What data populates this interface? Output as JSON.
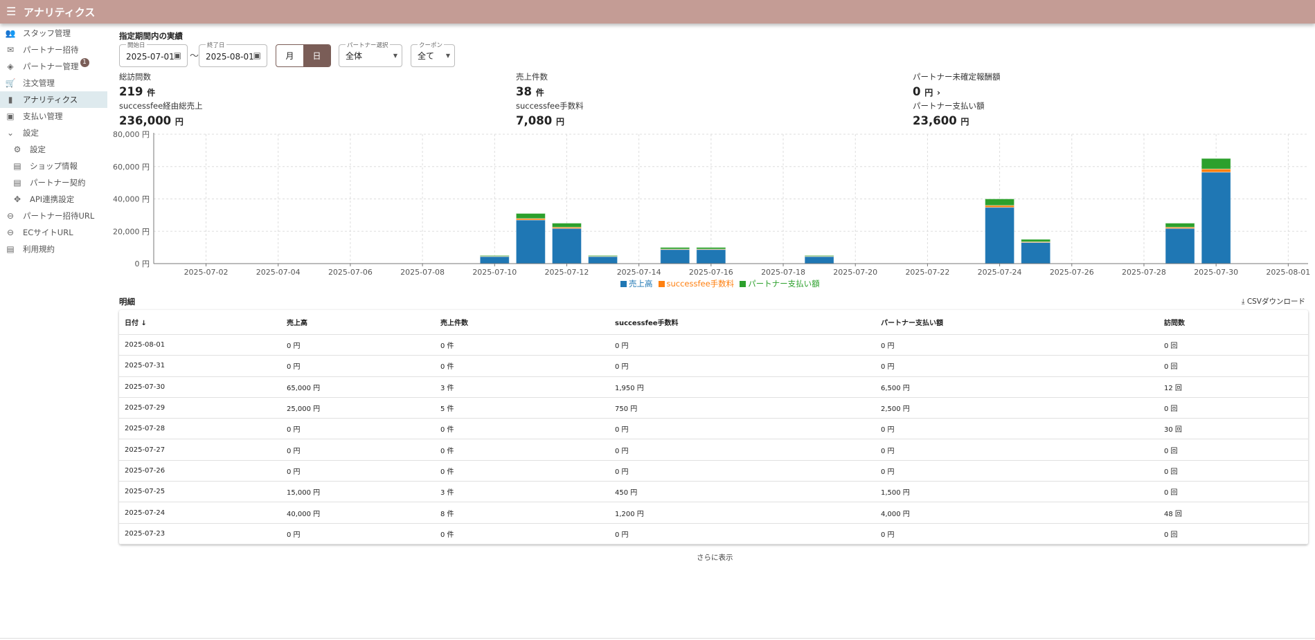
{
  "header": {
    "title": "アナリティクス"
  },
  "sidebar": {
    "items": [
      {
        "label": "スタッフ管理",
        "icon": "people-icon"
      },
      {
        "label": "パートナー招待",
        "icon": "mail-icon"
      },
      {
        "label": "パートナー管理",
        "icon": "handshake-icon",
        "badge": "1"
      },
      {
        "label": "注文管理",
        "icon": "cart-icon"
      },
      {
        "label": "アナリティクス",
        "icon": "bar-chart-icon",
        "active": true
      },
      {
        "label": "支払い管理",
        "icon": "payments-icon"
      },
      {
        "label": "設定",
        "icon": "chevron-down-icon"
      },
      {
        "label": "設定",
        "icon": "gear-icon",
        "sub": true
      },
      {
        "label": "ショップ情報",
        "icon": "store-icon",
        "sub": true
      },
      {
        "label": "パートナー契約",
        "icon": "document-icon",
        "sub": true
      },
      {
        "label": "API連携設定",
        "icon": "api-icon",
        "sub": true
      },
      {
        "label": "パートナー招待URL",
        "icon": "link-icon"
      },
      {
        "label": "ECサイトURL",
        "icon": "link-icon"
      },
      {
        "label": "利用規約",
        "icon": "document-icon"
      }
    ]
  },
  "filters": {
    "section_title": "指定期間内の実績",
    "start_label": "開始日",
    "start_value": "2025-07-01",
    "tilde": "〜",
    "end_label": "終了日",
    "end_value": "2025-08-01",
    "month": "月",
    "day": "日",
    "partner_label": "パートナー選択",
    "partner_value": "全体",
    "coupon_label": "クーポン",
    "coupon_value": "全て"
  },
  "stats": [
    {
      "label": "総訪問数",
      "value": "219",
      "unit": "件",
      "label2": "successfee経由総売上",
      "value2": "236,000",
      "unit2": "円"
    },
    {
      "label": "売上件数",
      "value": "38",
      "unit": "件",
      "label2": "successfee手数料",
      "value2": "7,080",
      "unit2": "円"
    },
    {
      "label": "パートナー未確定報酬額",
      "value": "0",
      "unit": "円",
      "label2": "パートナー支払い額",
      "value2": "23,600",
      "unit2": "円"
    }
  ],
  "chart_data": {
    "type": "bar",
    "stacked": true,
    "x": [
      "2025-07-10",
      "2025-07-11",
      "2025-07-12",
      "2025-07-13",
      "2025-07-15",
      "2025-07-16",
      "2025-07-19",
      "2025-07-24",
      "2025-07-25",
      "2025-07-29",
      "2025-07-30"
    ],
    "series": [
      {
        "name": "売上高",
        "color": "#1f77b4",
        "values": [
          4350,
          26970,
          21750,
          4350,
          8700,
          8700,
          4350,
          34800,
          13050,
          21750,
          56550
        ]
      },
      {
        "name": "successfee手数料",
        "color": "#ff7f0e",
        "values": [
          150,
          930,
          750,
          150,
          300,
          300,
          150,
          1200,
          450,
          750,
          1950
        ]
      },
      {
        "name": "パートナー支払い額",
        "color": "#2ca02c",
        "values": [
          500,
          3100,
          2500,
          500,
          1000,
          1000,
          500,
          4000,
          1500,
          2500,
          6500
        ]
      }
    ],
    "xlim": [
      "2025-07-01",
      "2025-08-01"
    ],
    "x_ticks": [
      "2025-07-02",
      "2025-07-04",
      "2025-07-06",
      "2025-07-08",
      "2025-07-10",
      "2025-07-12",
      "2025-07-14",
      "2025-07-16",
      "2025-07-18",
      "2025-07-20",
      "2025-07-22",
      "2025-07-24",
      "2025-07-26",
      "2025-07-28",
      "2025-07-30",
      "2025-08-01"
    ],
    "y_ticks": [
      "0 円",
      "20,000 円",
      "40,000 円",
      "60,000 円",
      "80,000 円"
    ],
    "ylim": [
      0,
      80000
    ],
    "grid": true,
    "legend": "bottom"
  },
  "detail": {
    "title": "明細",
    "csv": "CSVダウンロード",
    "more": "さらに表示",
    "columns": [
      "日付 ↓",
      "売上高",
      "売上件数",
      "successfee手数料",
      "パートナー支払い額",
      "訪問数"
    ],
    "rows": [
      [
        "2025-08-01",
        "0 円",
        "0 件",
        "0 円",
        "0 円",
        "0 回"
      ],
      [
        "2025-07-31",
        "0 円",
        "0 件",
        "0 円",
        "0 円",
        "0 回"
      ],
      [
        "2025-07-30",
        "65,000 円",
        "3 件",
        "1,950 円",
        "6,500 円",
        "12 回"
      ],
      [
        "2025-07-29",
        "25,000 円",
        "5 件",
        "750 円",
        "2,500 円",
        "0 回"
      ],
      [
        "2025-07-28",
        "0 円",
        "0 件",
        "0 円",
        "0 円",
        "30 回"
      ],
      [
        "2025-07-27",
        "0 円",
        "0 件",
        "0 円",
        "0 円",
        "0 回"
      ],
      [
        "2025-07-26",
        "0 円",
        "0 件",
        "0 円",
        "0 円",
        "0 回"
      ],
      [
        "2025-07-25",
        "15,000 円",
        "3 件",
        "450 円",
        "1,500 円",
        "0 回"
      ],
      [
        "2025-07-24",
        "40,000 円",
        "8 件",
        "1,200 円",
        "4,000 円",
        "48 回"
      ],
      [
        "2025-07-23",
        "0 円",
        "0 件",
        "0 円",
        "0 円",
        "0 回"
      ]
    ]
  }
}
